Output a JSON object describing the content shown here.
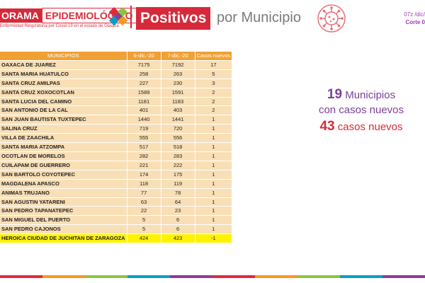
{
  "header": {
    "brand_left": "ORAMA",
    "brand_right": "EPIDEMIOLÓGICO",
    "brand_sub": "Enfermedad Respiratoria por Covid-19 en el estado de Oaxaca",
    "title_highlight": "Positivos",
    "title_rest": "por Municipio",
    "corner_line1": "07z /dic/",
    "corner_line2": "Corte 0",
    "accent_color": "#d62a3a"
  },
  "table": {
    "headers": [
      "MUNICIPIOS",
      "6-dic.-20",
      "7-dic.-20",
      "Casos nuevos"
    ],
    "rows": [
      {
        "name": "OAXACA DE JUAREZ",
        "d6": "7175",
        "d7": "7192",
        "new": "17"
      },
      {
        "name": "SANTA MARIA HUATULCO",
        "d6": "258",
        "d7": "263",
        "new": "5"
      },
      {
        "name": "SANTA CRUZ AMILPAS",
        "d6": "227",
        "d7": "230",
        "new": "3"
      },
      {
        "name": "SANTA CRUZ XOXOCOTLAN",
        "d6": "1589",
        "d7": "1591",
        "new": "2"
      },
      {
        "name": "SANTA LUCIA DEL CAMINO",
        "d6": "1181",
        "d7": "1183",
        "new": "2"
      },
      {
        "name": "SAN ANTONIO DE LA CAL",
        "d6": "401",
        "d7": "403",
        "new": "2"
      },
      {
        "name": "SAN JUAN BAUTISTA TUXTEPEC",
        "d6": "1440",
        "d7": "1441",
        "new": "1"
      },
      {
        "name": "SALINA CRUZ",
        "d6": "719",
        "d7": "720",
        "new": "1"
      },
      {
        "name": "VILLA DE ZAACHILA",
        "d6": "555",
        "d7": "556",
        "new": "1"
      },
      {
        "name": "SANTA MARIA ATZOMPA",
        "d6": "517",
        "d7": "518",
        "new": "1"
      },
      {
        "name": "OCOTLAN DE MORELOS",
        "d6": "282",
        "d7": "283",
        "new": "1"
      },
      {
        "name": "CUILAPAM DE GUERRERO",
        "d6": "221",
        "d7": "222",
        "new": "1"
      },
      {
        "name": "SAN BARTOLO COYOTEPEC",
        "d6": "174",
        "d7": "175",
        "new": "1"
      },
      {
        "name": "MAGDALENA APASCO",
        "d6": "118",
        "d7": "119",
        "new": "1"
      },
      {
        "name": "ANIMAS TRUJANO",
        "d6": "77",
        "d7": "78",
        "new": "1"
      },
      {
        "name": "SAN AGUSTIN YATARENI",
        "d6": "63",
        "d7": "64",
        "new": "1"
      },
      {
        "name": "SAN PEDRO TAPANATEPEC",
        "d6": "22",
        "d7": "23",
        "new": "1"
      },
      {
        "name": "SAN MIGUEL DEL PUERTO",
        "d6": "5",
        "d7": "6",
        "new": "1"
      },
      {
        "name": "SAN PEDRO CAJONOS",
        "d6": "5",
        "d7": "6",
        "new": "1"
      },
      {
        "name": "HEROICA CIUDAD DE JUCHITAN DE ZARAGOZA",
        "d6": "424",
        "d7": "423",
        "new": "-1",
        "highlight": true
      }
    ]
  },
  "summary": {
    "municipios_count": "19",
    "municipios_label": "Municipios",
    "line2": "con casos nuevos",
    "cases_count": "43",
    "cases_label": "casos nuevos"
  }
}
